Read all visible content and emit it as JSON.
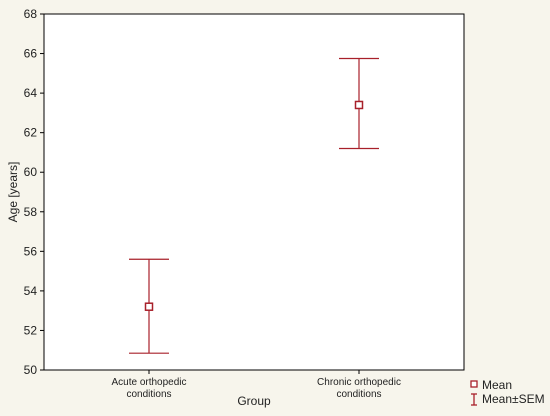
{
  "chart_data": {
    "type": "error-bar",
    "xlabel": "Group",
    "ylabel": "Age [years]",
    "ylim": [
      50,
      68
    ],
    "yticks": [
      50,
      52,
      54,
      56,
      58,
      60,
      62,
      64,
      66,
      68
    ],
    "categories": [
      [
        "Acute orthopedic",
        "conditions"
      ],
      [
        "Chronic orthopedic",
        "conditions"
      ]
    ],
    "series": [
      {
        "name": "Mean",
        "values": [
          53.2,
          63.4
        ],
        "sem_low": [
          50.85,
          61.2
        ],
        "sem_high": [
          55.6,
          65.75
        ]
      }
    ],
    "legend": {
      "placement": "bottom-right",
      "items": [
        "Mean",
        "Mean±SEM"
      ]
    },
    "grid": false,
    "color": "#a8202a"
  }
}
